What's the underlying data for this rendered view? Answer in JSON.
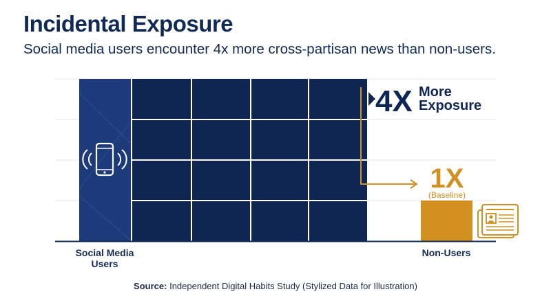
{
  "header": {
    "title": "Incidental Exposure",
    "subtitle": "Social media users encounter 4x more cross-partisan news than non-users."
  },
  "chart_data": {
    "type": "bar",
    "categories": [
      "Social Media Users",
      "Non-Users"
    ],
    "category_lines": [
      [
        "Social Media",
        "Users"
      ],
      [
        "Non-Users"
      ]
    ],
    "values": [
      4,
      1
    ],
    "ylim": [
      0,
      4
    ],
    "grid": true,
    "annotations": {
      "users_big": "4X",
      "users_line1": "More",
      "users_line2": "Exposure",
      "nonusers_big": "1X",
      "nonusers_small": "(Baseline)"
    },
    "colors": {
      "users_bar": "#1d3b7a",
      "users_grid": "#0f2653",
      "nonusers_bar": "#d1901f",
      "annotation_users": "#0f2653",
      "annotation_nonusers": "#d1901f",
      "gridline": "#e4e7ec",
      "axis": "#112a55"
    },
    "icons": [
      "smartphone-icon",
      "newspaper-icon"
    ]
  },
  "source": {
    "label": "Source:",
    "text": "Independent Digital Habits Study (Stylized Data for Illustration)"
  }
}
